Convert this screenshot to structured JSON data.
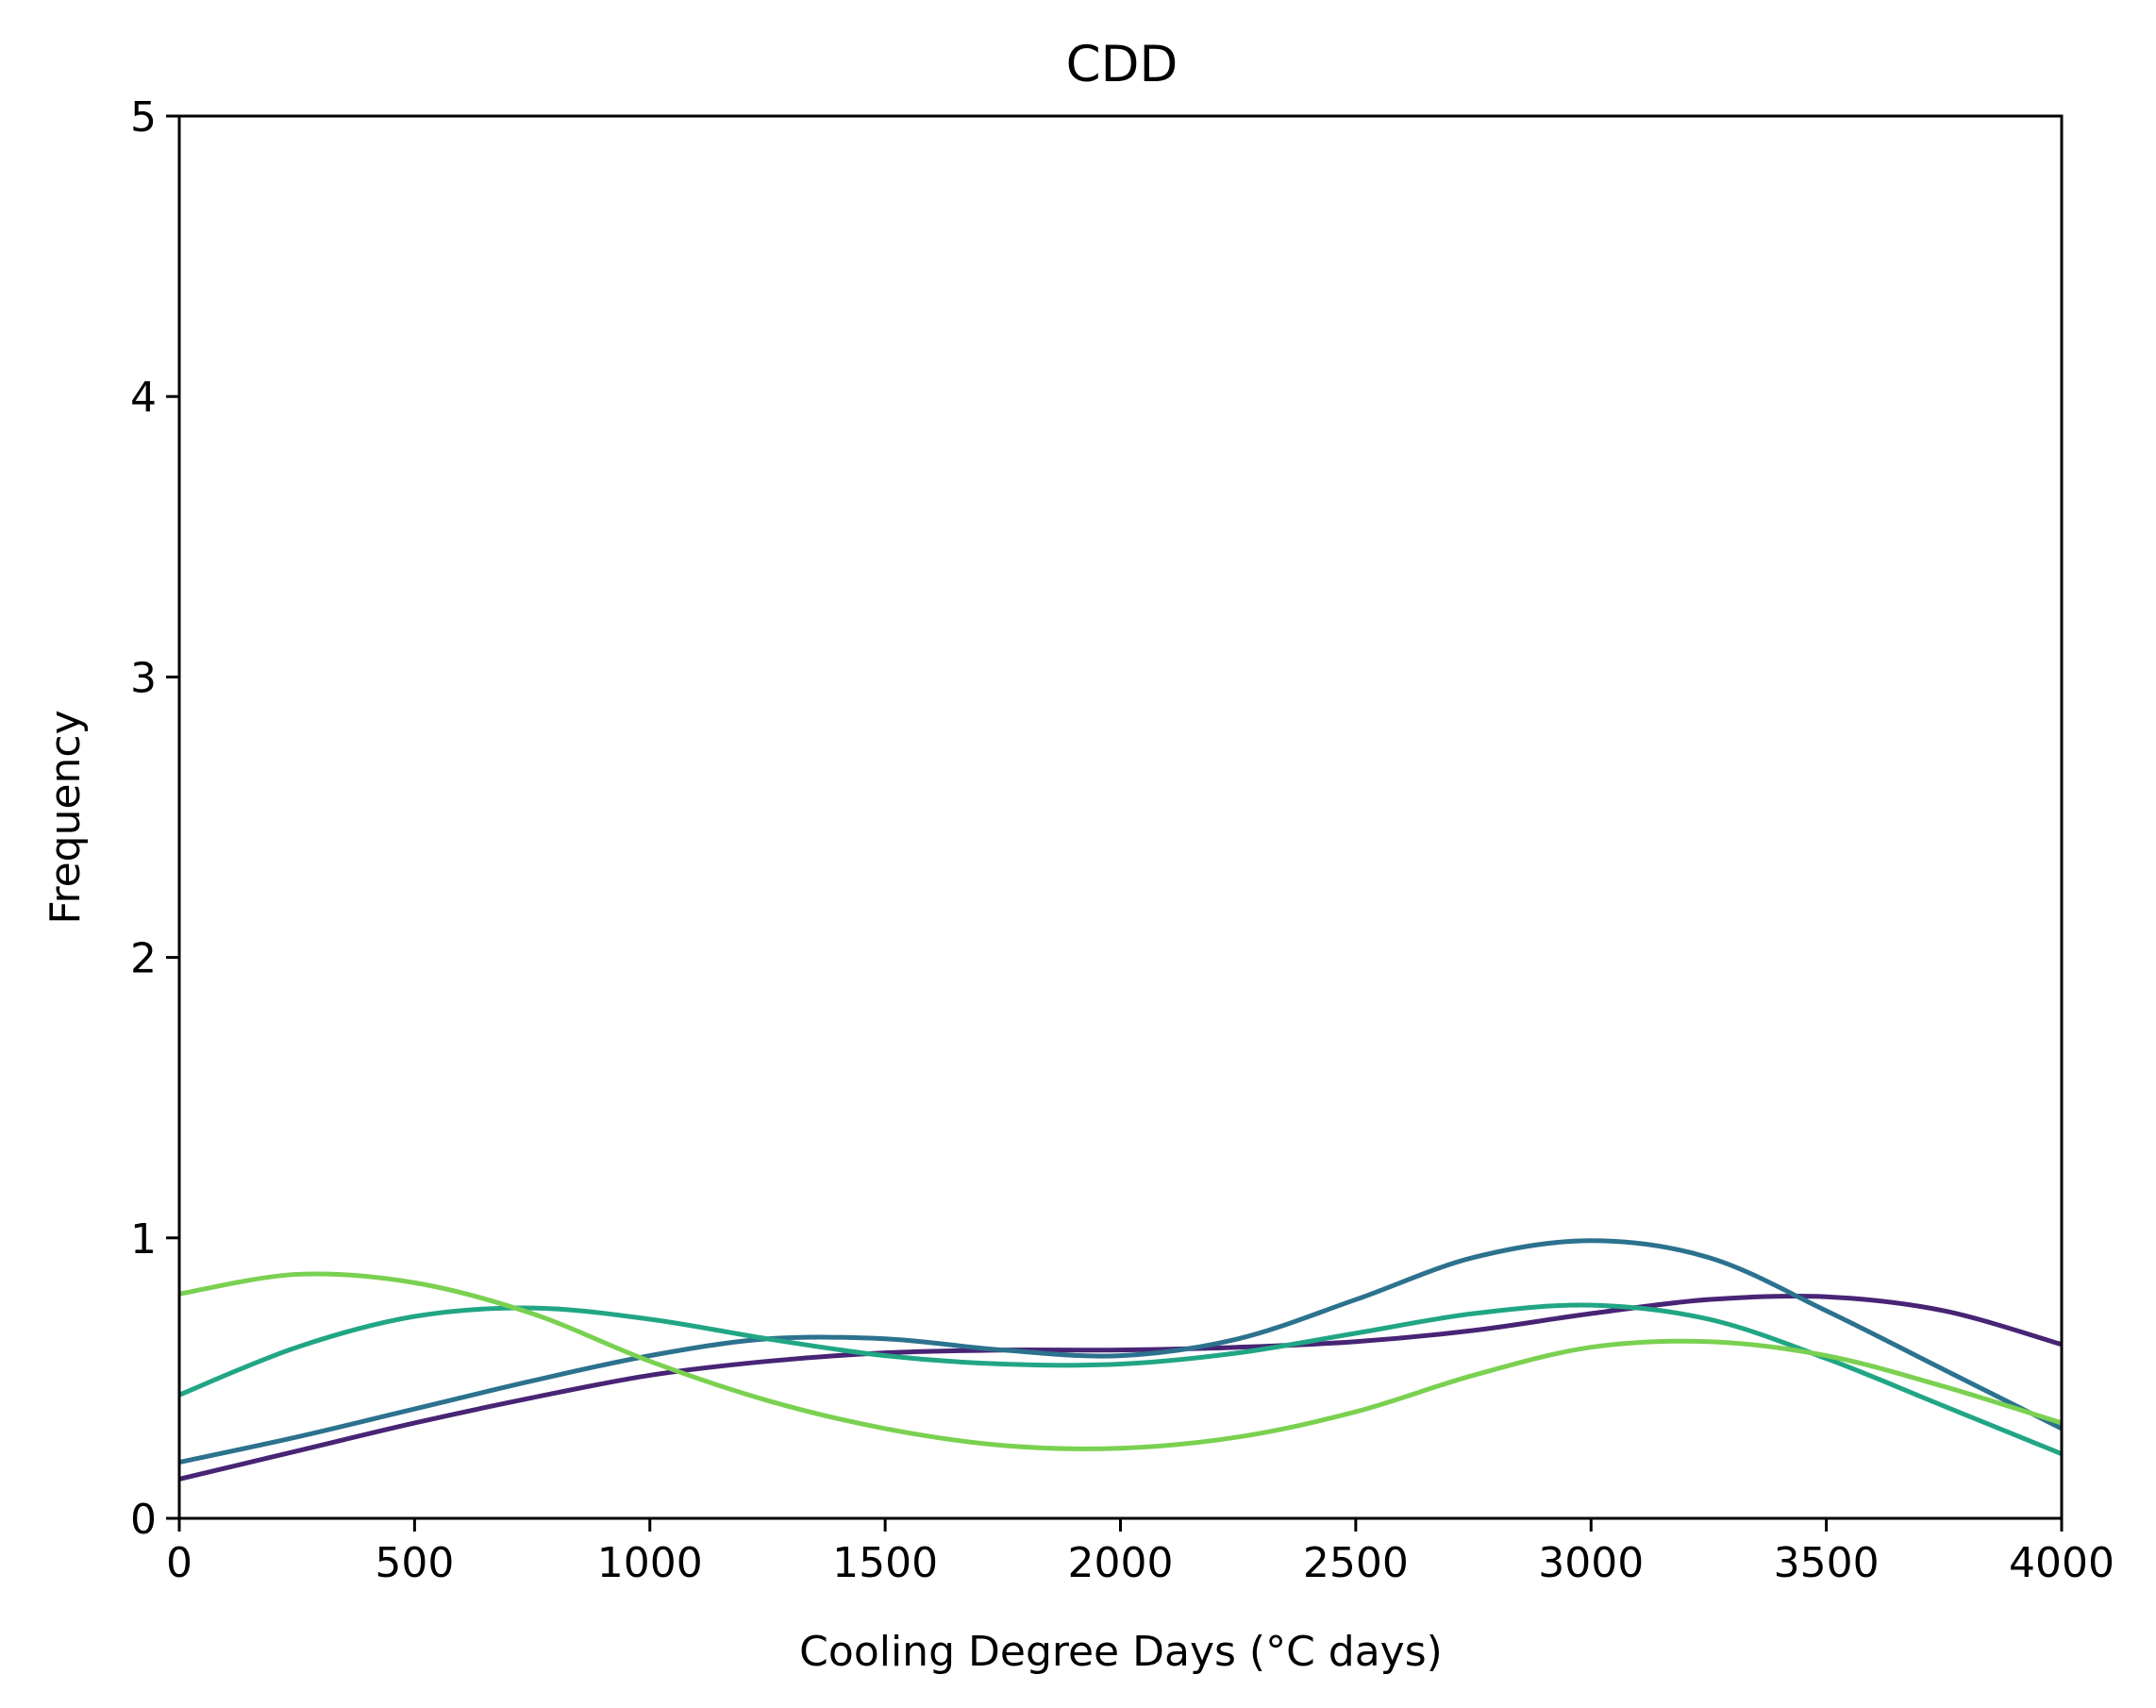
{
  "chart_data": {
    "type": "line",
    "title": "CDD",
    "xlabel": "Cooling Degree Days (°C days)",
    "ylabel": "Frequency",
    "xlim": [
      0,
      4000
    ],
    "ylim": [
      0,
      5
    ],
    "x_ticks": [
      0,
      500,
      1000,
      1500,
      2000,
      2500,
      3000,
      3500,
      4000
    ],
    "y_ticks": [
      0,
      1,
      2,
      3,
      4,
      5
    ],
    "grid": false,
    "series": [
      {
        "color": "#482475",
        "x": [
          0,
          250,
          500,
          750,
          1000,
          1250,
          1500,
          1750,
          2000,
          2250,
          2500,
          2750,
          3000,
          3250,
          3500,
          3750,
          4000
        ],
        "y": [
          0.14,
          0.24,
          0.34,
          0.43,
          0.51,
          0.56,
          0.59,
          0.6,
          0.6,
          0.61,
          0.63,
          0.67,
          0.73,
          0.78,
          0.79,
          0.74,
          0.62
        ]
      },
      {
        "color": "#2c728e",
        "x": [
          0,
          250,
          500,
          750,
          1000,
          1250,
          1500,
          1750,
          2000,
          2250,
          2500,
          2750,
          3000,
          3250,
          3500,
          3750,
          4000
        ],
        "y": [
          0.2,
          0.29,
          0.39,
          0.49,
          0.58,
          0.64,
          0.64,
          0.6,
          0.58,
          0.64,
          0.78,
          0.93,
          0.99,
          0.93,
          0.74,
          0.53,
          0.32
        ]
      },
      {
        "color": "#21a685",
        "x": [
          0,
          250,
          500,
          750,
          1000,
          1250,
          1500,
          1750,
          2000,
          2250,
          2500,
          2750,
          3000,
          3250,
          3500,
          3750,
          4000
        ],
        "y": [
          0.44,
          0.61,
          0.72,
          0.75,
          0.71,
          0.64,
          0.58,
          0.55,
          0.55,
          0.59,
          0.66,
          0.73,
          0.76,
          0.71,
          0.57,
          0.4,
          0.23
        ]
      },
      {
        "color": "#7ad151",
        "x": [
          0,
          250,
          500,
          750,
          1000,
          1250,
          1500,
          1750,
          2000,
          2250,
          2500,
          2750,
          3000,
          3250,
          3500,
          3750,
          4000
        ],
        "y": [
          0.8,
          0.87,
          0.84,
          0.73,
          0.56,
          0.42,
          0.32,
          0.26,
          0.25,
          0.29,
          0.38,
          0.51,
          0.61,
          0.63,
          0.58,
          0.47,
          0.34
        ]
      }
    ]
  }
}
